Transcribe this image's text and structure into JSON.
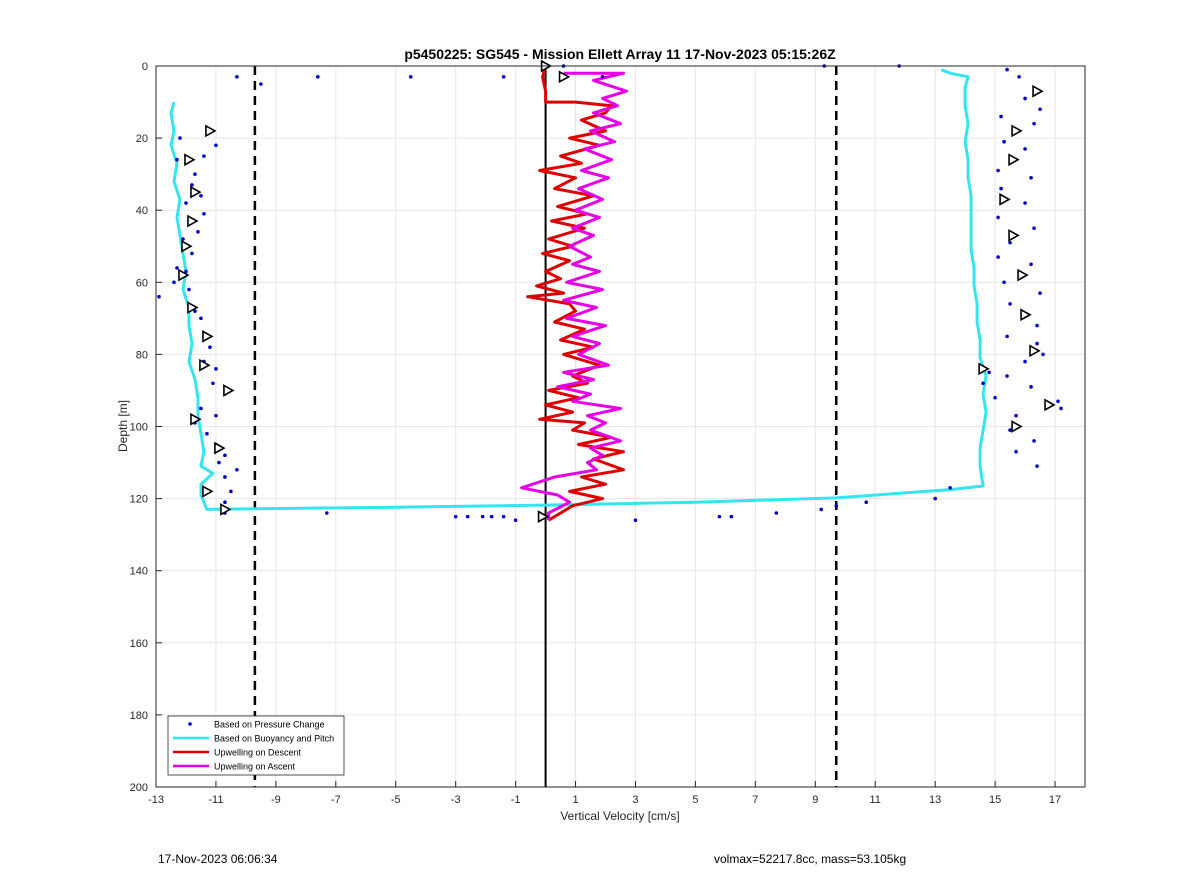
{
  "chart_data": {
    "type": "scatter",
    "title": "p5450225: SG545 - Mission Ellett Array 11 17-Nov-2023 05:15:26Z",
    "xlabel": "Vertical Velocity [cm/s]",
    "ylabel": "Depth [m]",
    "xlim": [
      -13,
      18
    ],
    "ylim": [
      0,
      200
    ],
    "y_reversed": true,
    "grid": true,
    "xticks": [
      -13,
      -11,
      -9,
      -7,
      -5,
      -3,
      -1,
      1,
      3,
      5,
      7,
      9,
      11,
      13,
      15,
      17
    ],
    "yticks": [
      0,
      20,
      40,
      60,
      80,
      100,
      120,
      140,
      160,
      180,
      200
    ],
    "legend_position": "bottom-left",
    "reference_lines": {
      "zero": 0,
      "dashed": [
        -9.7,
        9.7
      ]
    },
    "series": [
      {
        "name": "Based on Pressure Change",
        "kind": "markers",
        "color": "#0000cc",
        "points": [
          [
            -12.2,
            20
          ],
          [
            -12.3,
            26
          ],
          [
            -11.8,
            33
          ],
          [
            -12.0,
            38
          ],
          [
            -11.8,
            43
          ],
          [
            -12.1,
            48
          ],
          [
            -12.3,
            56
          ],
          [
            -12.4,
            60
          ],
          [
            -12.9,
            64
          ],
          [
            -11.7,
            68
          ],
          [
            -11.3,
            75
          ],
          [
            -11.4,
            82
          ],
          [
            -11.1,
            88
          ],
          [
            -11.5,
            95
          ],
          [
            -11.7,
            99
          ],
          [
            -11.0,
            105
          ],
          [
            -10.9,
            110
          ],
          [
            -10.7,
            114
          ],
          [
            -10.5,
            118
          ],
          [
            -10.7,
            121
          ],
          [
            -10.7,
            124
          ],
          [
            -11.0,
            22
          ],
          [
            -11.4,
            25
          ],
          [
            -11.7,
            30
          ],
          [
            -11.5,
            36
          ],
          [
            -11.4,
            41
          ],
          [
            -11.6,
            46
          ],
          [
            -11.8,
            52
          ],
          [
            -12.0,
            57
          ],
          [
            -11.9,
            62
          ],
          [
            -11.5,
            70
          ],
          [
            -11.2,
            78
          ],
          [
            -11.0,
            84
          ],
          [
            -10.7,
            91
          ],
          [
            -11.0,
            97
          ],
          [
            -11.3,
            102
          ],
          [
            -10.7,
            108
          ],
          [
            -10.3,
            112
          ],
          [
            -10.3,
            3
          ],
          [
            -9.5,
            5
          ],
          [
            -7.6,
            3
          ],
          [
            -4.5,
            3
          ],
          [
            -1.4,
            3
          ],
          [
            0.6,
            0
          ],
          [
            1.9,
            3
          ],
          [
            9.3,
            0
          ],
          [
            11.8,
            0
          ],
          [
            15.4,
            1
          ],
          [
            15.8,
            3
          ],
          [
            16.0,
            9
          ],
          [
            16.5,
            12
          ],
          [
            15.2,
            14
          ],
          [
            16.3,
            16
          ],
          [
            15.3,
            21
          ],
          [
            16.0,
            23
          ],
          [
            15.1,
            29
          ],
          [
            16.2,
            31
          ],
          [
            15.2,
            34
          ],
          [
            16.0,
            38
          ],
          [
            15.1,
            42
          ],
          [
            16.3,
            45
          ],
          [
            15.5,
            49
          ],
          [
            15.1,
            53
          ],
          [
            16.2,
            55
          ],
          [
            15.3,
            60
          ],
          [
            16.5,
            63
          ],
          [
            15.5,
            66
          ],
          [
            16.4,
            72
          ],
          [
            15.4,
            75
          ],
          [
            16.4,
            77
          ],
          [
            16.0,
            82
          ],
          [
            15.4,
            86
          ],
          [
            16.2,
            89
          ],
          [
            17.1,
            93
          ],
          [
            15.7,
            97
          ],
          [
            15.5,
            101
          ],
          [
            16.3,
            104
          ],
          [
            15.7,
            107
          ],
          [
            16.4,
            111
          ],
          [
            14.8,
            85
          ],
          [
            14.6,
            88
          ],
          [
            15.0,
            92
          ],
          [
            16.6,
            80
          ],
          [
            17.2,
            95
          ],
          [
            -7.3,
            124
          ],
          [
            -3.0,
            125
          ],
          [
            -2.6,
            125
          ],
          [
            -2.1,
            125
          ],
          [
            -1.8,
            125
          ],
          [
            -1.4,
            125
          ],
          [
            -1.0,
            126
          ],
          [
            3.0,
            126
          ],
          [
            5.8,
            125
          ],
          [
            6.2,
            125
          ],
          [
            7.7,
            124
          ],
          [
            9.2,
            123
          ],
          [
            9.7,
            122
          ],
          [
            10.7,
            121
          ],
          [
            13.0,
            120
          ],
          [
            13.5,
            117
          ]
        ]
      },
      {
        "name": "Based on Buoyancy and Pitch",
        "kind": "line",
        "color": "#33e6ee",
        "points": [
          [
            -12.4,
            10
          ],
          [
            -12.5,
            13
          ],
          [
            -12.4,
            18
          ],
          [
            -12.5,
            22
          ],
          [
            -12.3,
            27
          ],
          [
            -12.4,
            32
          ],
          [
            -12.2,
            37
          ],
          [
            -12.3,
            42
          ],
          [
            -12.2,
            47
          ],
          [
            -12.1,
            52
          ],
          [
            -12.0,
            57
          ],
          [
            -12.1,
            62
          ],
          [
            -11.9,
            67
          ],
          [
            -11.9,
            72
          ],
          [
            -11.8,
            77
          ],
          [
            -11.9,
            82
          ],
          [
            -11.7,
            87
          ],
          [
            -11.6,
            92
          ],
          [
            -11.6,
            97
          ],
          [
            -11.5,
            102
          ],
          [
            -11.4,
            107
          ],
          [
            -11.5,
            111
          ],
          [
            -11.1,
            113
          ],
          [
            -11.5,
            116
          ],
          [
            -11.5,
            119
          ],
          [
            -11.4,
            121
          ],
          [
            -11.3,
            123
          ],
          [
            -9.7,
            122.8
          ],
          [
            -5.0,
            122.4
          ],
          [
            0.0,
            121.8
          ],
          [
            5.0,
            121.0
          ],
          [
            9.7,
            119.8
          ],
          [
            13.5,
            117.5
          ],
          [
            14.6,
            116.5
          ],
          [
            14.5,
            111
          ],
          [
            14.5,
            106
          ],
          [
            14.6,
            101
          ],
          [
            14.7,
            96
          ],
          [
            14.6,
            91
          ],
          [
            14.7,
            86
          ],
          [
            14.5,
            81
          ],
          [
            14.5,
            76
          ],
          [
            14.4,
            71
          ],
          [
            14.4,
            66
          ],
          [
            14.3,
            61
          ],
          [
            14.3,
            56
          ],
          [
            14.2,
            51
          ],
          [
            14.2,
            46
          ],
          [
            14.2,
            41
          ],
          [
            14.2,
            36
          ],
          [
            14.1,
            31
          ],
          [
            14.1,
            26
          ],
          [
            14.0,
            21
          ],
          [
            14.1,
            16
          ],
          [
            14.0,
            11
          ],
          [
            14.0,
            6
          ],
          [
            14.1,
            3
          ],
          [
            13.5,
            2
          ],
          [
            13.2,
            1
          ]
        ]
      },
      {
        "name": "Upwelling on Descent",
        "kind": "line",
        "color": "#dd0000",
        "points": [
          [
            0.0,
            0
          ],
          [
            -0.1,
            3
          ],
          [
            0.0,
            7
          ],
          [
            0.0,
            10
          ],
          [
            1.0,
            10
          ],
          [
            2.2,
            11
          ],
          [
            2.0,
            13
          ],
          [
            1.2,
            15
          ],
          [
            2.0,
            18
          ],
          [
            0.8,
            20
          ],
          [
            1.8,
            22
          ],
          [
            0.5,
            25
          ],
          [
            1.2,
            27
          ],
          [
            -0.2,
            29
          ],
          [
            1.0,
            31
          ],
          [
            0.3,
            34
          ],
          [
            1.6,
            36
          ],
          [
            0.4,
            39
          ],
          [
            1.4,
            41
          ],
          [
            0.2,
            43
          ],
          [
            1.3,
            45
          ],
          [
            0.1,
            48
          ],
          [
            0.9,
            50
          ],
          [
            -0.1,
            52
          ],
          [
            0.8,
            54
          ],
          [
            0.0,
            57
          ],
          [
            0.5,
            59
          ],
          [
            -0.3,
            61
          ],
          [
            0.6,
            63
          ],
          [
            -0.6,
            64
          ],
          [
            0.8,
            66
          ],
          [
            1.0,
            68
          ],
          [
            0.3,
            71
          ],
          [
            1.3,
            73
          ],
          [
            0.5,
            76
          ],
          [
            1.6,
            78
          ],
          [
            0.6,
            80
          ],
          [
            1.8,
            83
          ],
          [
            0.9,
            86
          ],
          [
            1.4,
            88
          ],
          [
            0.1,
            90
          ],
          [
            1.1,
            92
          ],
          [
            0.0,
            94
          ],
          [
            0.9,
            96
          ],
          [
            -0.2,
            98
          ],
          [
            1.3,
            99
          ],
          [
            0.9,
            101
          ],
          [
            2.2,
            103
          ],
          [
            1.1,
            105
          ],
          [
            2.6,
            107
          ],
          [
            1.6,
            109
          ],
          [
            2.6,
            112
          ],
          [
            1.2,
            114
          ],
          [
            2.0,
            116
          ],
          [
            0.8,
            118
          ],
          [
            1.9,
            120
          ],
          [
            0.9,
            122
          ],
          [
            0.1,
            126
          ]
        ]
      },
      {
        "name": "Upwelling on Ascent",
        "kind": "line",
        "color": "#e600e6",
        "points": [
          [
            0.6,
            2
          ],
          [
            2.6,
            2
          ],
          [
            1.6,
            4
          ],
          [
            2.7,
            7
          ],
          [
            1.9,
            9
          ],
          [
            2.4,
            11
          ],
          [
            1.6,
            13
          ],
          [
            2.5,
            16
          ],
          [
            1.5,
            18
          ],
          [
            2.3,
            21
          ],
          [
            1.3,
            23
          ],
          [
            2.2,
            26
          ],
          [
            1.2,
            29
          ],
          [
            2.1,
            31
          ],
          [
            1.1,
            34
          ],
          [
            1.9,
            37
          ],
          [
            1.0,
            40
          ],
          [
            1.8,
            42
          ],
          [
            0.9,
            45
          ],
          [
            1.6,
            47
          ],
          [
            0.8,
            50
          ],
          [
            1.5,
            53
          ],
          [
            0.9,
            55
          ],
          [
            1.8,
            57
          ],
          [
            0.7,
            60
          ],
          [
            1.9,
            62
          ],
          [
            0.6,
            65
          ],
          [
            1.7,
            67
          ],
          [
            0.7,
            70
          ],
          [
            2.0,
            72
          ],
          [
            0.9,
            75
          ],
          [
            1.8,
            77
          ],
          [
            1.1,
            80
          ],
          [
            2.1,
            83
          ],
          [
            0.6,
            85
          ],
          [
            1.6,
            87
          ],
          [
            0.4,
            89
          ],
          [
            1.5,
            91
          ],
          [
            0.9,
            93
          ],
          [
            2.5,
            95
          ],
          [
            1.4,
            97
          ],
          [
            2.0,
            99
          ],
          [
            1.5,
            101
          ],
          [
            2.5,
            104
          ],
          [
            1.5,
            106
          ],
          [
            1.9,
            108
          ],
          [
            1.4,
            110
          ],
          [
            1.7,
            112
          ],
          [
            0.3,
            114
          ],
          [
            -0.8,
            117
          ],
          [
            0.4,
            119
          ],
          [
            0.8,
            121
          ],
          [
            0.1,
            124
          ],
          [
            0.1,
            126
          ]
        ]
      }
    ],
    "triangle_markers": {
      "color": "#000000",
      "points": [
        [
          -11.2,
          18
        ],
        [
          -11.9,
          26
        ],
        [
          -11.7,
          35
        ],
        [
          -11.8,
          43
        ],
        [
          -12.0,
          50
        ],
        [
          -12.1,
          58
        ],
        [
          -11.8,
          67
        ],
        [
          -11.3,
          75
        ],
        [
          -11.4,
          83
        ],
        [
          -10.6,
          90
        ],
        [
          -11.7,
          98
        ],
        [
          -10.9,
          106
        ],
        [
          -11.3,
          118
        ],
        [
          -10.7,
          123
        ],
        [
          0.6,
          3
        ],
        [
          0.0,
          0
        ],
        [
          -0.1,
          125
        ],
        [
          16.4,
          7
        ],
        [
          15.7,
          18
        ],
        [
          15.6,
          26
        ],
        [
          15.3,
          37
        ],
        [
          15.6,
          47
        ],
        [
          15.9,
          58
        ],
        [
          16.0,
          69
        ],
        [
          16.3,
          79
        ],
        [
          14.6,
          84
        ],
        [
          16.8,
          94
        ],
        [
          15.7,
          100
        ]
      ]
    }
  },
  "footer": {
    "timestamp": "17-Nov-2023 06:06:34",
    "info": "volmax=52217.8cc, mass=53.105kg"
  }
}
